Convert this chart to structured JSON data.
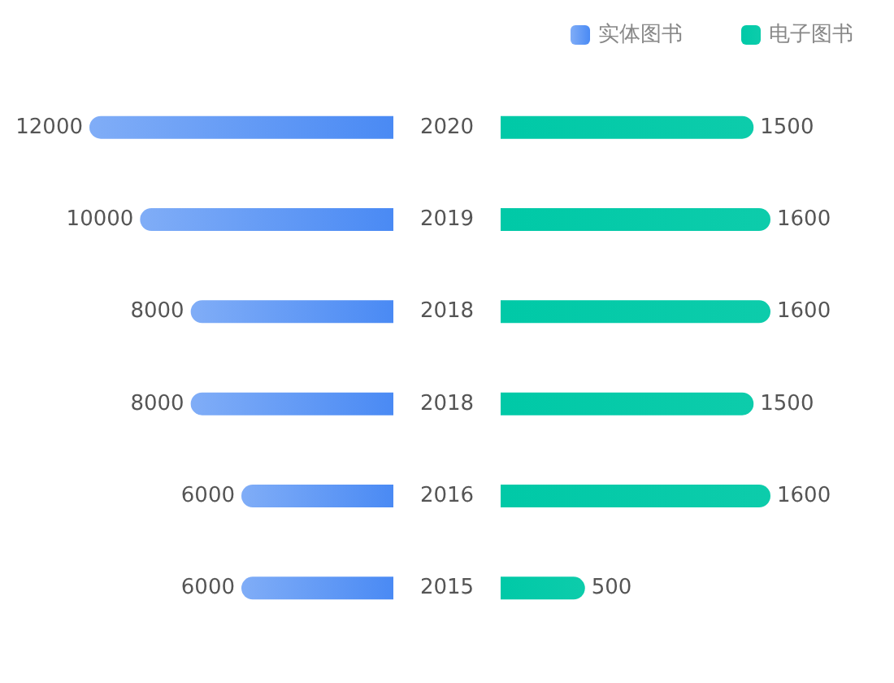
{
  "chart_data": [
    {
      "type": "bar",
      "orientation": "horizontal",
      "categories": [
        "2020",
        "2019",
        "2018",
        "2018",
        "2016",
        "2015"
      ],
      "series": [
        {
          "name": "实体图书",
          "color": "#4a8af4",
          "values": [
            12000,
            10000,
            8000,
            8000,
            6000,
            6000
          ]
        }
      ],
      "data_labels": true,
      "legend": "top right",
      "tick_labels": "y"
    },
    {
      "type": "bar",
      "orientation": "horizontal",
      "categories": [
        "2020",
        "2019",
        "2018",
        "2018",
        "2016",
        "2015"
      ],
      "series": [
        {
          "name": "电子图书",
          "color": "#00c9a7",
          "values": [
            1500,
            1600,
            1600,
            1500,
            1600,
            500
          ]
        }
      ],
      "data_labels": true,
      "legend": "top right",
      "tick_labels": false
    }
  ]
}
